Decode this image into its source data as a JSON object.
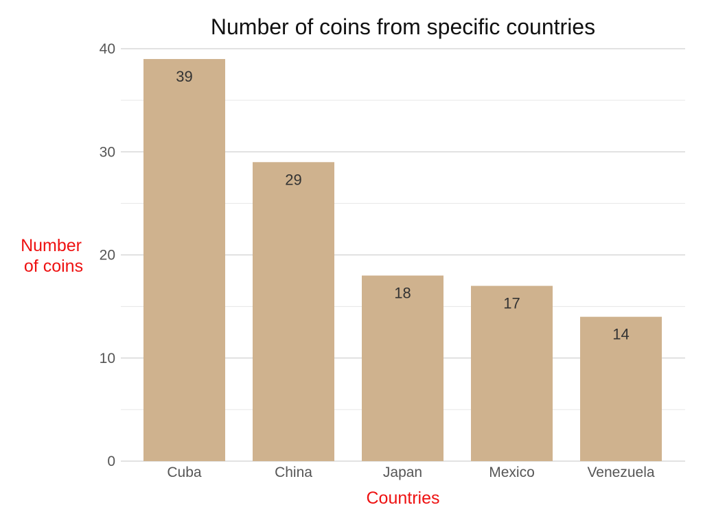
{
  "chart_data": {
    "type": "bar",
    "title": "Number of coins from specific countries",
    "xlabel": "Countries",
    "ylabel_lines": [
      "Number",
      "of coins"
    ],
    "categories": [
      "Cuba",
      "China",
      "Japan",
      "Mexico",
      "Venezuela"
    ],
    "values": [
      39,
      29,
      18,
      17,
      14
    ],
    "ylim": [
      0,
      40
    ],
    "yticks": [
      0,
      10,
      20,
      30,
      40
    ],
    "grid": true,
    "legend": "none",
    "colors": {
      "bar": "#cfb28e",
      "axis_label": "#ee1111",
      "title": "#111111"
    }
  }
}
